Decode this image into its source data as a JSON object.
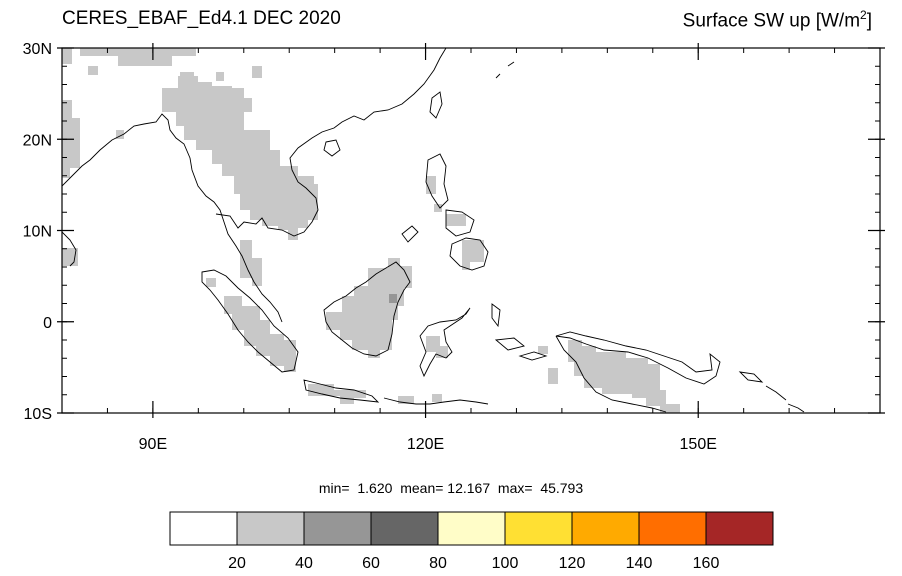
{
  "header": {
    "title_left": "CERES_EBAF_Ed4.1 DEC 2020",
    "title_right_main": "Surface SW up [W/m",
    "title_right_sup": "2",
    "title_right_end": "]"
  },
  "map": {
    "lon_range": [
      80,
      170
    ],
    "lat_range": [
      -10,
      30
    ],
    "lat_ticks": [
      {
        "value": 30,
        "label": "30N"
      },
      {
        "value": 20,
        "label": "20N"
      },
      {
        "value": 10,
        "label": "10N"
      },
      {
        "value": 0,
        "label": "0"
      },
      {
        "value": -10,
        "label": "10S"
      }
    ],
    "lon_ticks": [
      {
        "value": 90,
        "label": "90E"
      },
      {
        "value": 120,
        "label": "120E"
      },
      {
        "value": 150,
        "label": "150E"
      }
    ],
    "colors": {
      "coast": "#000000",
      "frame": "#000000",
      "level_20_40": "#c8c8c8",
      "level_40_60": "#969696"
    }
  },
  "stats": {
    "min_label": "min=",
    "min_value": "1.620",
    "mean_label": "mean=",
    "mean_value": "12.167",
    "max_label": "max=",
    "max_value": "45.793"
  },
  "colorbar": {
    "colors": [
      "#ffffff",
      "#c8c8c8",
      "#969696",
      "#666666",
      "#fffdc8",
      "#ffe033",
      "#ffaa00",
      "#ff6e00",
      "#a52626"
    ],
    "labels": [
      "20",
      "40",
      "60",
      "80",
      "100",
      "120",
      "140",
      "160"
    ]
  }
}
